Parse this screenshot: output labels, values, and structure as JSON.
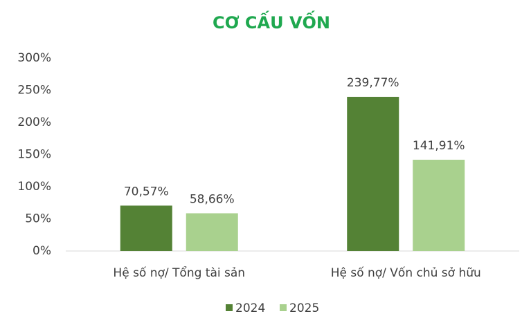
{
  "chart_data": {
    "type": "bar",
    "title": "CƠ CẤU VỐN",
    "categories": [
      "Hệ số nợ/ Tổng tài sản",
      "Hệ số nợ/ Vốn chủ sở hữu"
    ],
    "series": [
      {
        "name": "2024",
        "color": "#548235",
        "values": [
          70.57,
          239.77
        ],
        "value_labels": [
          "70,57%",
          "239,77%"
        ]
      },
      {
        "name": "2025",
        "color": "#a9d18e",
        "values": [
          58.66,
          141.91
        ],
        "value_labels": [
          "58,66%",
          "141,91%"
        ]
      }
    ],
    "ylim": [
      0,
      300
    ],
    "yticks": [
      {
        "value": 0,
        "label": "0%"
      },
      {
        "value": 50,
        "label": "50%"
      },
      {
        "value": 100,
        "label": "100%"
      },
      {
        "value": 150,
        "label": "150%"
      },
      {
        "value": 200,
        "label": "200%"
      },
      {
        "value": 250,
        "label": "250%"
      },
      {
        "value": 300,
        "label": "300%"
      }
    ],
    "grid": false,
    "legend": "bottom"
  }
}
